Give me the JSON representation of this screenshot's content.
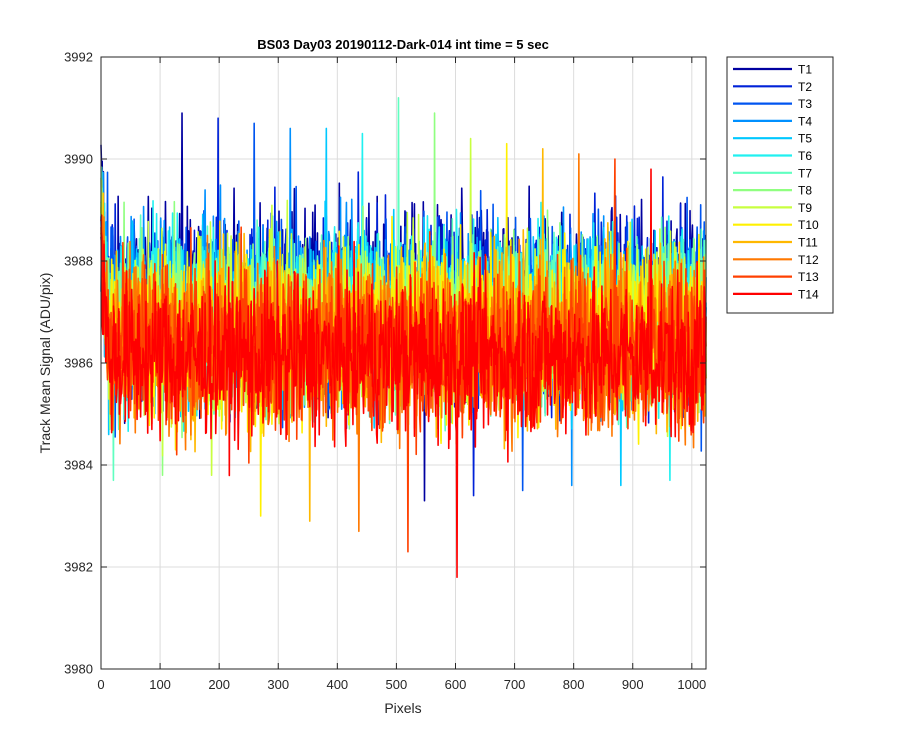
{
  "chart_data": {
    "type": "line",
    "title": "BS03 Day03 20190112-Dark-014 int time = 5 sec",
    "xlabel": "Pixels",
    "ylabel": "Track Mean Signal (ADU/pix)",
    "xlim": [
      0,
      1024
    ],
    "ylim": [
      3980,
      3992
    ],
    "xticks": [
      0,
      100,
      200,
      300,
      400,
      500,
      600,
      700,
      800,
      900,
      1000
    ],
    "yticks": [
      3980,
      3982,
      3984,
      3986,
      3988,
      3990,
      3992
    ],
    "xtick_labels": [
      "0",
      "100",
      "200",
      "300",
      "400",
      "500",
      "600",
      "700",
      "800",
      "900",
      "1000"
    ],
    "ytick_labels": [
      "3980",
      "3982",
      "3984",
      "3986",
      "3988",
      "3990",
      "3992"
    ],
    "grid": true,
    "legend_position": "outside-top-right",
    "series": [
      {
        "name": "T1",
        "color": "#0000A0",
        "mean": 3987.2,
        "spread": 1.3,
        "max": 3990.9,
        "min": 3983.3
      },
      {
        "name": "T2",
        "color": "#0022D8",
        "mean": 3987.1,
        "spread": 1.3,
        "max": 3990.8,
        "min": 3983.4
      },
      {
        "name": "T3",
        "color": "#0055F0",
        "mean": 3987.0,
        "spread": 1.3,
        "max": 3990.7,
        "min": 3983.5
      },
      {
        "name": "T4",
        "color": "#0090FF",
        "mean": 3987.0,
        "spread": 1.2,
        "max": 3990.6,
        "min": 3983.6
      },
      {
        "name": "T5",
        "color": "#00C8FF",
        "mean": 3986.9,
        "spread": 1.2,
        "max": 3990.6,
        "min": 3983.6
      },
      {
        "name": "T6",
        "color": "#20F0F0",
        "mean": 3986.9,
        "spread": 1.2,
        "max": 3990.5,
        "min": 3983.7
      },
      {
        "name": "T7",
        "color": "#60FFC0",
        "mean": 3986.8,
        "spread": 1.2,
        "max": 3991.2,
        "min": 3983.7
      },
      {
        "name": "T8",
        "color": "#90FF80",
        "mean": 3986.8,
        "spread": 1.2,
        "max": 3990.9,
        "min": 3983.8
      },
      {
        "name": "T9",
        "color": "#C8FF40",
        "mean": 3986.7,
        "spread": 1.2,
        "max": 3990.4,
        "min": 3983.8
      },
      {
        "name": "T10",
        "color": "#FFF000",
        "mean": 3986.6,
        "spread": 1.2,
        "max": 3990.3,
        "min": 3983.0
      },
      {
        "name": "T11",
        "color": "#FFB800",
        "mean": 3986.5,
        "spread": 1.2,
        "max": 3990.2,
        "min": 3982.9
      },
      {
        "name": "T12",
        "color": "#FF7800",
        "mean": 3986.4,
        "spread": 1.2,
        "max": 3990.1,
        "min": 3982.7
      },
      {
        "name": "T13",
        "color": "#FF4000",
        "mean": 3986.3,
        "spread": 1.2,
        "max": 3990.0,
        "min": 3982.3
      },
      {
        "name": "T14",
        "color": "#FF0000",
        "mean": 3986.1,
        "spread": 1.1,
        "max": 3989.8,
        "min": 3981.8
      }
    ]
  }
}
